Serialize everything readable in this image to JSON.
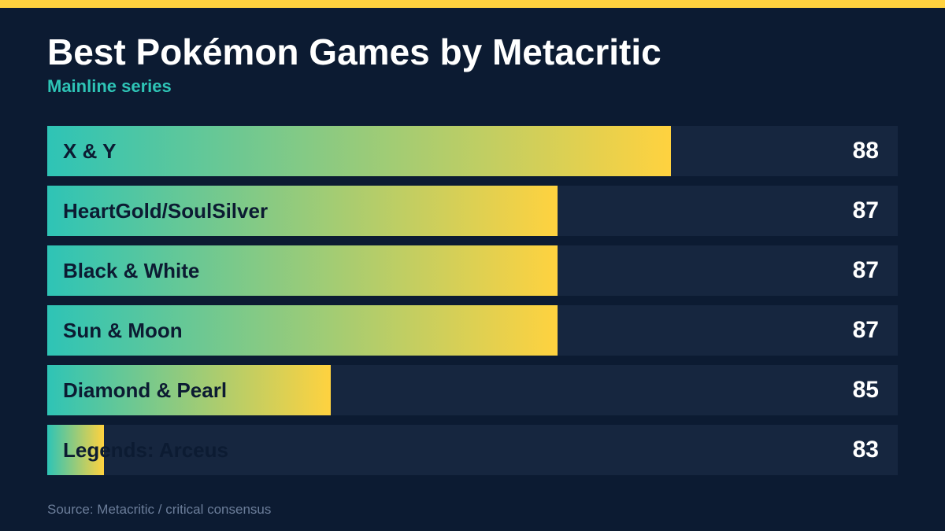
{
  "title": "Best Pokémon Games by Metacritic",
  "subtitle": "Mainline series",
  "source": "Source: Metacritic / critical consensus",
  "colors": {
    "background": "#0c1b32",
    "accent_stripe": "#ffd23f",
    "gradient_start": "#2ec4b6",
    "gradient_end": "#ffd23f",
    "track": "#16263f"
  },
  "chart_data": {
    "type": "bar",
    "orientation": "horizontal",
    "title": "Best Pokémon Games by Metacritic",
    "subtitle": "Mainline series",
    "categories": [
      "X & Y",
      "HeartGold/SoulSilver",
      "Black & White",
      "Sun & Moon",
      "Diamond & Pearl",
      "Legends: Arceus"
    ],
    "values": [
      88,
      87,
      87,
      87,
      85,
      83
    ],
    "xlim": [
      82.5,
      90
    ],
    "grid": false,
    "legend": "none"
  }
}
